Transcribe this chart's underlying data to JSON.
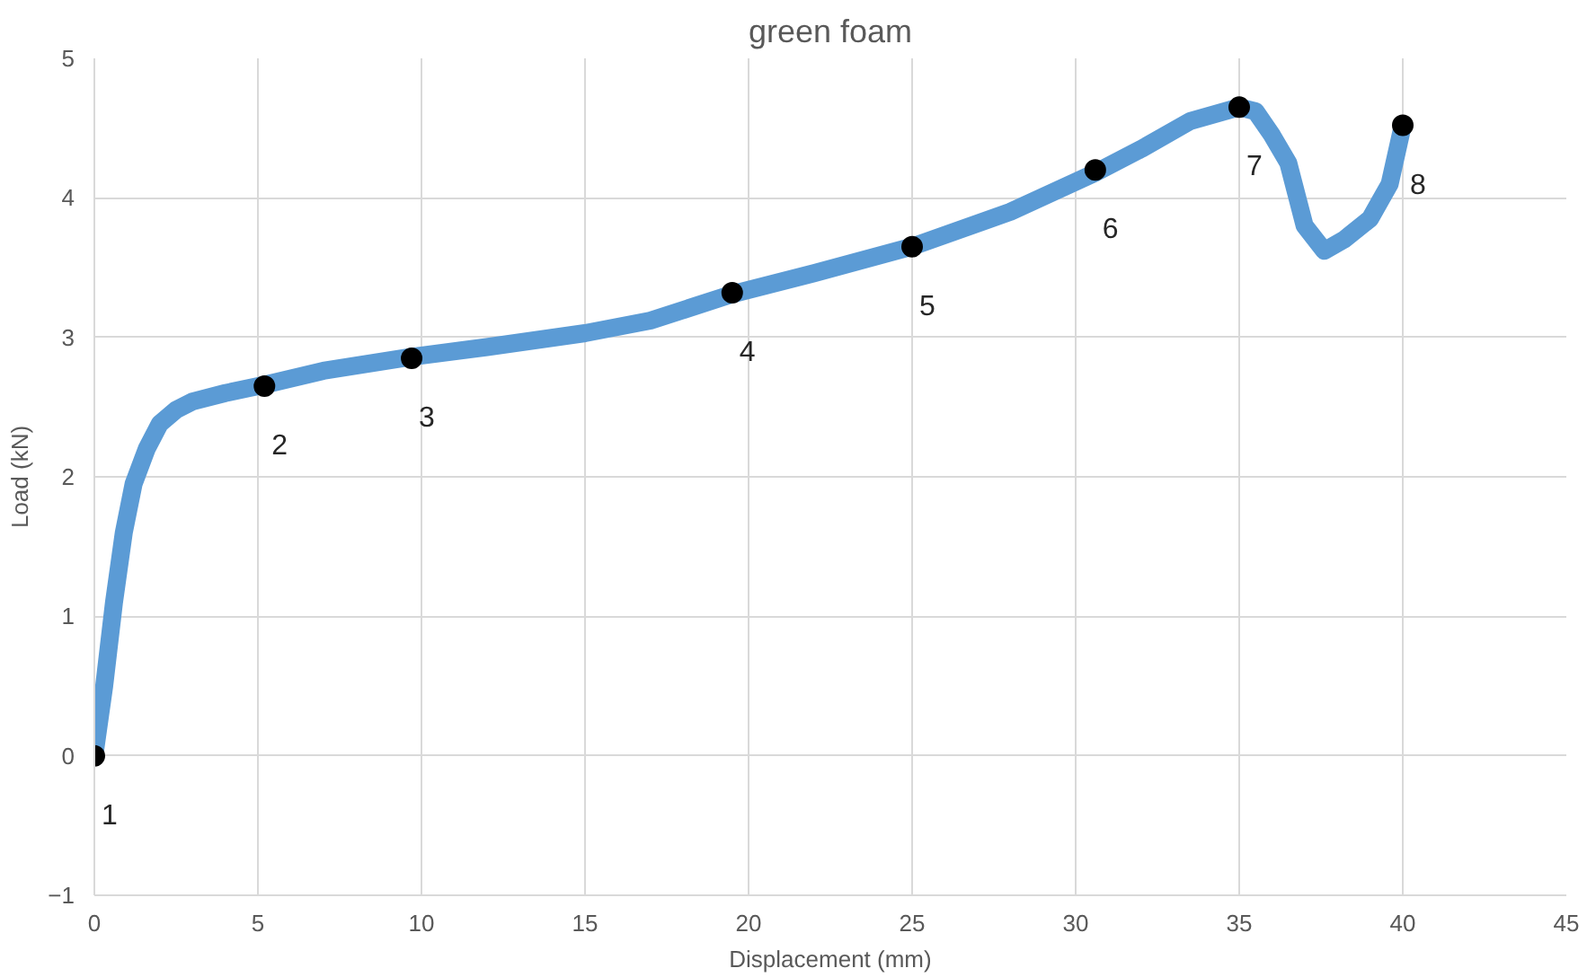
{
  "chart_data": {
    "type": "line",
    "title": "green foam",
    "xlabel": "Displacement (mm)",
    "ylabel": "Load (kN)",
    "xlim": [
      0,
      45
    ],
    "ylim": [
      -1,
      5
    ],
    "xticks": [
      0,
      5,
      10,
      15,
      20,
      25,
      30,
      35,
      40,
      45
    ],
    "yticks": [
      -1,
      0,
      1,
      2,
      3,
      4,
      5
    ],
    "grid": true,
    "series": [
      {
        "color": "#5b9bd5",
        "x": [
          0,
          0.3,
          0.6,
          0.9,
          1.2,
          1.6,
          2,
          2.5,
          3,
          4,
          5.2,
          7,
          9.7,
          12,
          15,
          17,
          19.5,
          22,
          25,
          28,
          30.6,
          32,
          33.5,
          35,
          35.5,
          36,
          36.5,
          37,
          37.6,
          38.2,
          39,
          39.6,
          40
        ],
        "values": [
          0,
          0.5,
          1.1,
          1.6,
          1.95,
          2.2,
          2.38,
          2.48,
          2.54,
          2.6,
          2.66,
          2.76,
          2.86,
          2.93,
          3.03,
          3.12,
          3.31,
          3.46,
          3.65,
          3.9,
          4.18,
          4.35,
          4.55,
          4.65,
          4.62,
          4.45,
          4.25,
          3.8,
          3.62,
          3.7,
          3.85,
          4.1,
          4.52
        ]
      },
      {
        "type": "scatter",
        "color": "#000000",
        "marker": "circle",
        "x": [
          0,
          5.2,
          9.7,
          19.5,
          25,
          30.6,
          35,
          40
        ],
        "values": [
          0,
          2.65,
          2.85,
          3.32,
          3.65,
          4.2,
          4.65,
          4.52
        ]
      }
    ],
    "annotations": [
      {
        "text": "1",
        "x": 0,
        "y": 0
      },
      {
        "text": "2",
        "x": 5.2,
        "y": 2.65
      },
      {
        "text": "3",
        "x": 9.7,
        "y": 2.85
      },
      {
        "text": "4",
        "x": 19.5,
        "y": 3.32
      },
      {
        "text": "5",
        "x": 25,
        "y": 3.65
      },
      {
        "text": "6",
        "x": 30.6,
        "y": 4.2
      },
      {
        "text": "7",
        "x": 35,
        "y": 4.65
      },
      {
        "text": "8",
        "x": 40,
        "y": 4.52
      }
    ]
  }
}
